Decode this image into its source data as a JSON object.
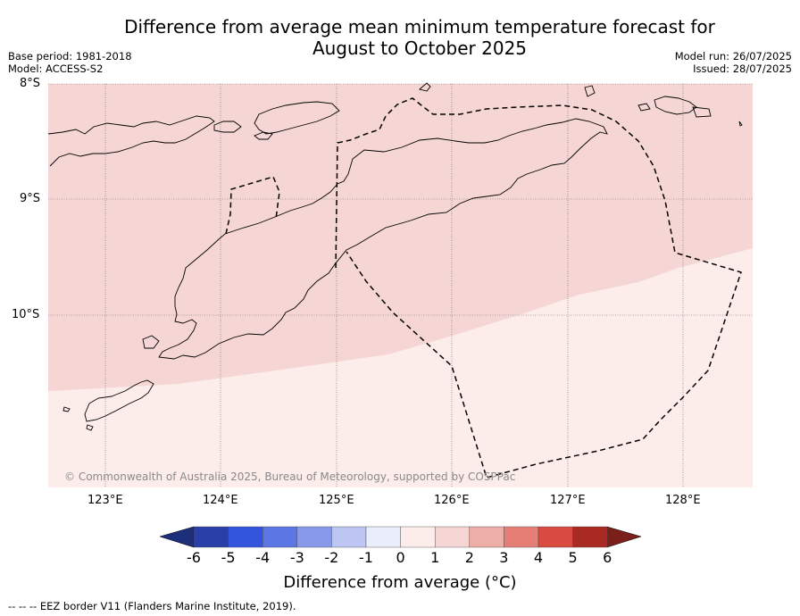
{
  "title_line1": "Difference from average mean minimum temperature forecast for",
  "title_line2": "August to October 2025",
  "base_period": "Base period: 1981-2018",
  "model": "Model: ACCESS-S2",
  "model_run": "Model run: 26/07/2025",
  "issued": "Issued: 28/07/2025",
  "lat_labels": [
    "8°S",
    "9°S",
    "10°S"
  ],
  "lon_labels": [
    "123°E",
    "124°E",
    "125°E",
    "126°E",
    "127°E",
    "128°E"
  ],
  "copyright": "© Commonwealth of Australia 2025, Bureau of Meteorology, supported by COSPPac",
  "colorbar": {
    "ticks": [
      "-6",
      "-5",
      "-4",
      "-3",
      "-2",
      "-1",
      "0",
      "1",
      "2",
      "3",
      "4",
      "5",
      "6"
    ],
    "colors": [
      "#2a3fa8",
      "#3355dd",
      "#5c77e3",
      "#8799e8",
      "#bdc6f2",
      "#eaedfb",
      "#fcecea",
      "#f5d6d4",
      "#eeaea8",
      "#e57f76",
      "#d94a40",
      "#a92a22"
    ],
    "under_color": "#1d2e7a",
    "over_color": "#7a1f1a",
    "title": "Difference from average (°C)"
  },
  "map_fill_colors": {
    "zone_1_to_2": "#f5d6d4",
    "zone_0_to_1": "#fcecea"
  },
  "eez_note": "-- -- -- EEZ border V11 (Flanders Marine Institute, 2019)."
}
